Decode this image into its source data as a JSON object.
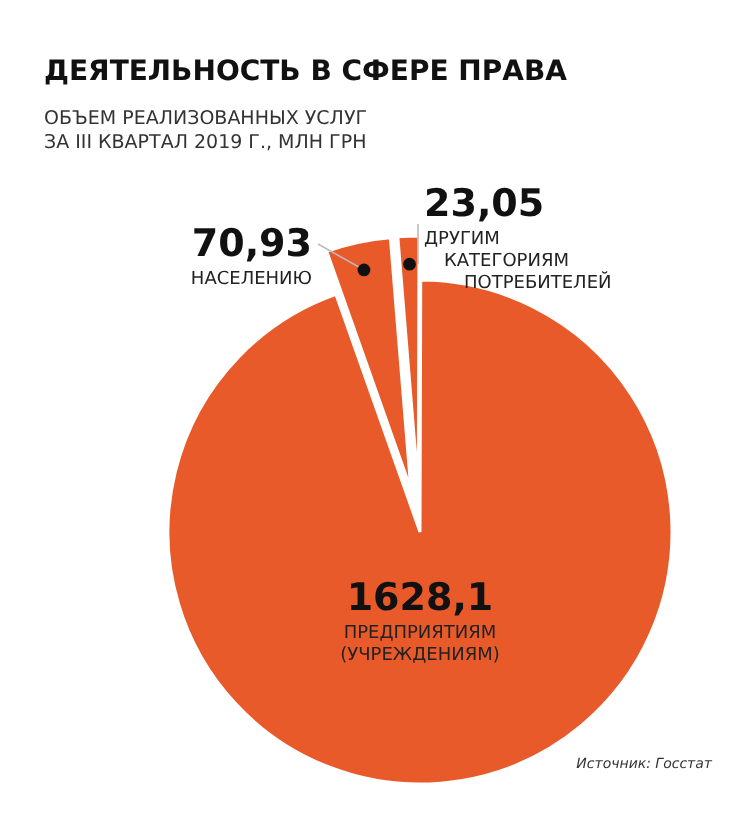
{
  "chart_data": {
    "type": "pie",
    "title": "ДЕЯТЕЛЬНОСТЬ В СФЕРЕ ПРАВА",
    "subtitle": "ОБЪЕМ РЕАЛИЗОВАННЫХ УСЛУГ ЗА III КВАРТАЛ 2019 Г., МЛН ГРН",
    "categories": [
      "НАСЕЛЕНИЮ",
      "ДРУГИМ КАТЕГОРИЯМ ПОТРЕБИТЕЛЕЙ",
      "ПРЕДПРИЯТИЯМ (УЧРЕЖДЕНИЯМ)"
    ],
    "values": [
      70.93,
      23.05,
      1628.1
    ],
    "value_labels": [
      "70,93",
      "23,05",
      "1628,1"
    ],
    "colors": [
      "#e85a2a",
      "#e85a2a",
      "#e85a2a"
    ],
    "annotations": [
      "Источник: Госстат"
    ]
  }
}
